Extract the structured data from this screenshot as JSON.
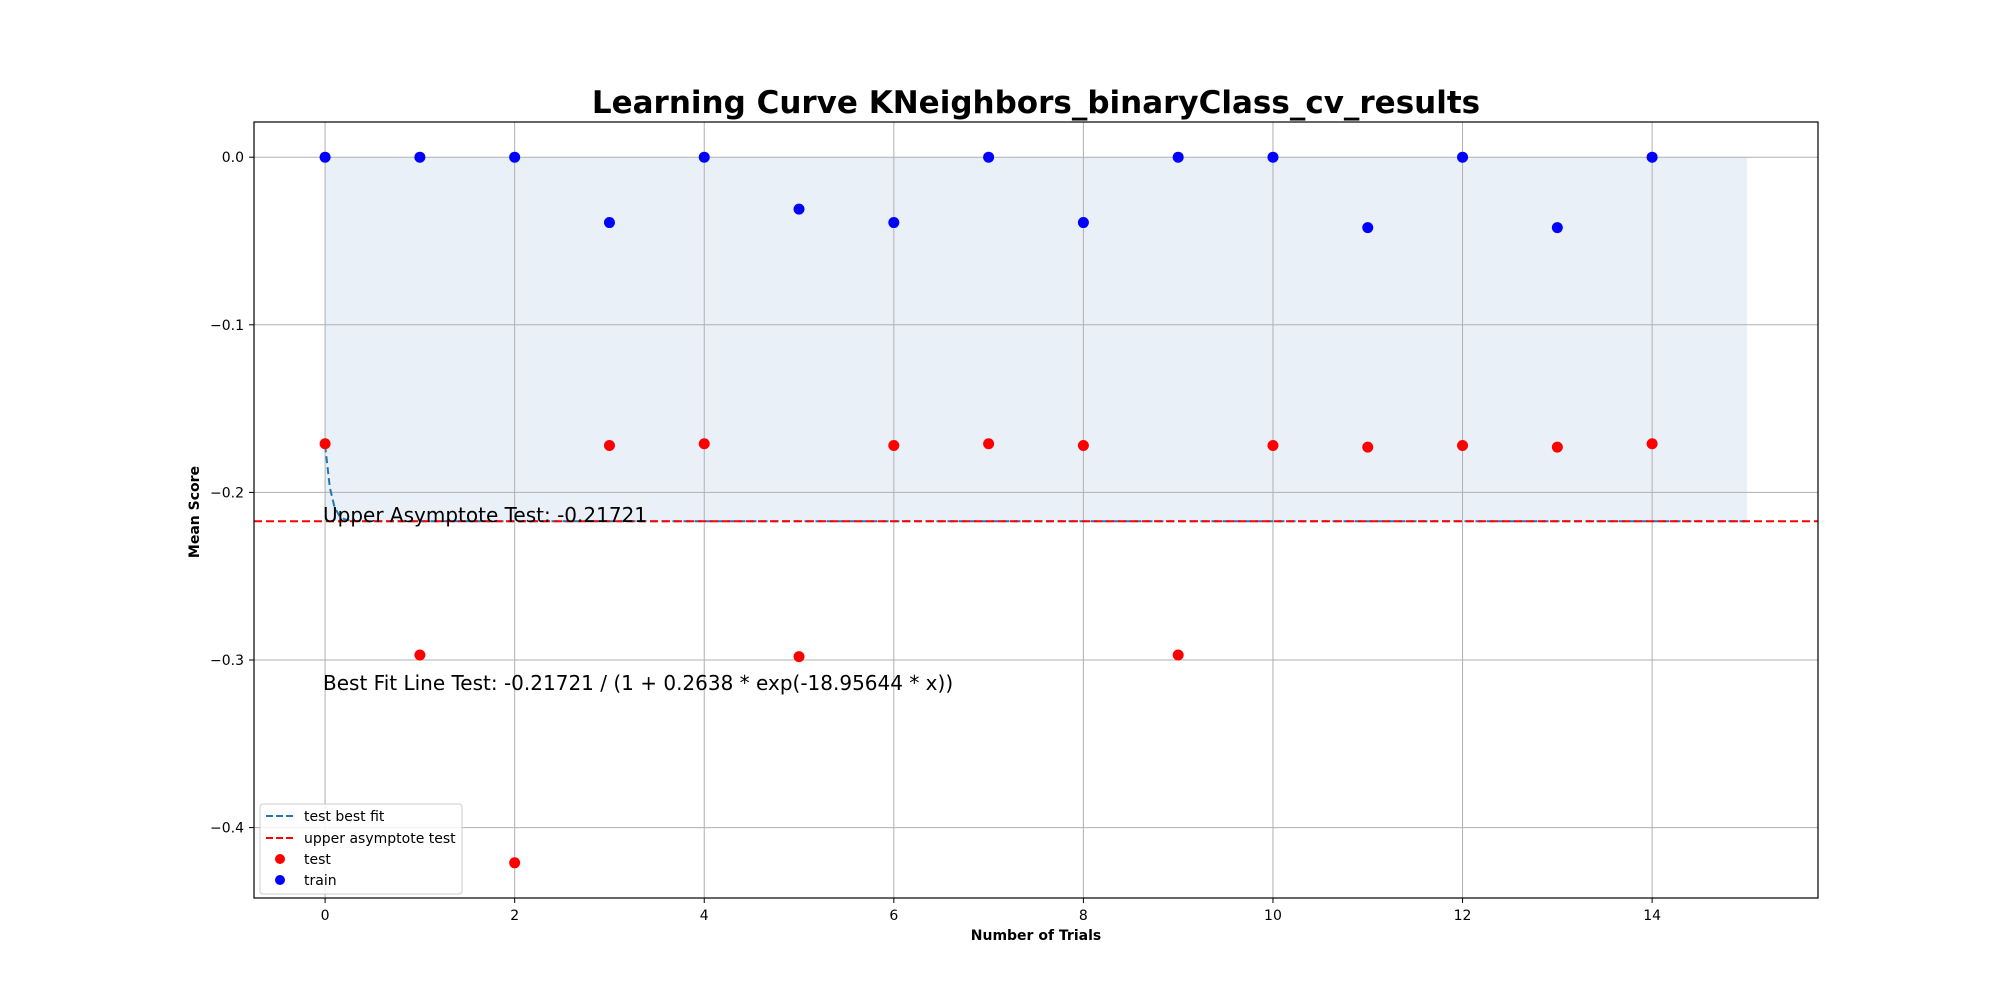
{
  "chart_data": {
    "type": "scatter",
    "title": "Learning Curve KNeighbors_binaryClass_cv_results",
    "xlabel": "Number of Trials",
    "ylabel": "Mean Score",
    "xlim": [
      -0.75,
      15.75
    ],
    "ylim": [
      -0.442,
      0.021
    ],
    "xticks": [
      0,
      2,
      4,
      6,
      8,
      10,
      12,
      14
    ],
    "xtick_labels": [
      "0",
      "2",
      "4",
      "6",
      "8",
      "10",
      "12",
      "14"
    ],
    "yticks": [
      0.0,
      -0.1,
      -0.2,
      -0.3,
      -0.4
    ],
    "ytick_labels": [
      "0.0",
      "−0.1",
      "−0.2",
      "−0.3",
      "−0.4"
    ],
    "grid": true,
    "legend_position": "lower-left",
    "series": [
      {
        "name": "train",
        "kind": "scatter",
        "color": "#0000ff",
        "x": [
          0,
          1,
          2,
          3,
          4,
          5,
          6,
          7,
          8,
          9,
          10,
          11,
          12,
          13,
          14
        ],
        "y": [
          0.0,
          0.0,
          0.0,
          -0.039,
          0.0,
          -0.031,
          -0.039,
          0.0,
          -0.039,
          0.0,
          0.0,
          -0.042,
          0.0,
          -0.042,
          0.0
        ]
      },
      {
        "name": "test",
        "kind": "scatter",
        "color": "#ff0000",
        "x": [
          0,
          1,
          2,
          3,
          4,
          5,
          6,
          7,
          8,
          9,
          10,
          11,
          12,
          13,
          14
        ],
        "y": [
          -0.171,
          -0.297,
          -0.421,
          -0.172,
          -0.171,
          -0.298,
          -0.172,
          -0.171,
          -0.172,
          -0.297,
          -0.172,
          -0.173,
          -0.172,
          -0.173,
          -0.171
        ]
      },
      {
        "name": "test best fit",
        "kind": "line",
        "style": "dashed",
        "color": "#1f77b4",
        "asymptote": -0.21721,
        "coef_a": 0.2638,
        "coef_b": 18.95644,
        "x_range": [
          0,
          15
        ]
      },
      {
        "name": "upper asymptote test",
        "kind": "hline",
        "style": "dashed",
        "color": "#ff0000",
        "y": -0.21721
      }
    ],
    "shaded_band": {
      "x_range": [
        0,
        15
      ],
      "y_range": [
        -0.21721,
        0.0
      ],
      "color": "#dbe6f3"
    },
    "legend": [
      "test best fit",
      "upper asymptote test",
      "test",
      "train"
    ],
    "annotations": {
      "asymptote": "Upper Asymptote Test: -0.21721",
      "best_fit": "Best Fit Line Test: -0.21721 / (1 + 0.2638 * exp(-18.95644 * x))"
    }
  }
}
